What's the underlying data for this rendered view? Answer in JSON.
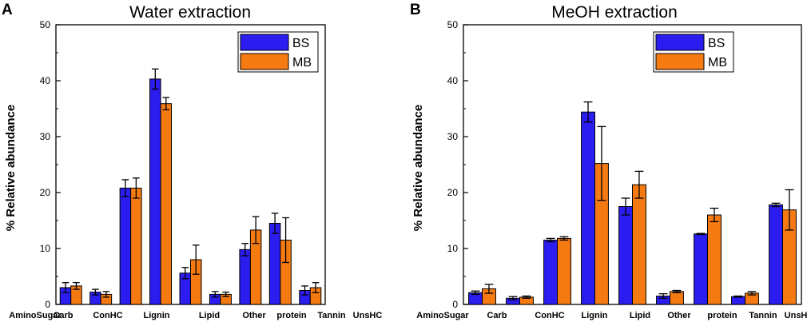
{
  "chart_data": [
    {
      "type": "bar",
      "panel": "A",
      "title": "Water extraction",
      "ylabel": "% Relative abundance",
      "xlabel": "",
      "ylim": [
        0,
        50
      ],
      "yticks": [
        0,
        10,
        20,
        30,
        40,
        50
      ],
      "categories": [
        "AminoSugar",
        "Carb",
        "ConHC",
        "Lignin",
        "Lipid",
        "Other",
        "protein",
        "Tannin",
        "UnsHC"
      ],
      "series": [
        {
          "name": "BS",
          "color": "#2b1df0",
          "values": [
            3.0,
            2.2,
            20.8,
            40.3,
            5.6,
            1.8,
            9.8,
            14.5,
            2.5
          ],
          "errors": [
            0.9,
            0.5,
            1.5,
            1.8,
            1.0,
            0.5,
            1.1,
            1.8,
            0.8
          ]
        },
        {
          "name": "MB",
          "color": "#f57a12",
          "values": [
            3.3,
            1.8,
            20.8,
            35.9,
            8.0,
            1.8,
            13.3,
            11.5,
            3.0
          ],
          "errors": [
            0.6,
            0.5,
            1.8,
            1.1,
            2.6,
            0.4,
            2.4,
            4.0,
            0.9
          ]
        }
      ]
    },
    {
      "type": "bar",
      "panel": "B",
      "title": "MeOH extraction",
      "ylabel": "% Relative abundance",
      "xlabel": "",
      "ylim": [
        0,
        50
      ],
      "yticks": [
        0,
        10,
        20,
        30,
        40,
        50
      ],
      "categories": [
        "AminoSugar",
        "Carb",
        "ConHC",
        "Lignin",
        "Lipid",
        "Other",
        "protein",
        "Tannin",
        "UnsHC"
      ],
      "series": [
        {
          "name": "BS",
          "color": "#2b1df0",
          "values": [
            2.1,
            1.1,
            11.5,
            34.4,
            17.5,
            1.5,
            12.6,
            1.4,
            17.8
          ],
          "errors": [
            0.3,
            0.3,
            0.3,
            1.8,
            1.5,
            0.4,
            0.1,
            0.1,
            0.3
          ]
        },
        {
          "name": "MB",
          "color": "#f57a12",
          "values": [
            2.8,
            1.3,
            11.8,
            25.2,
            21.4,
            2.3,
            16.0,
            2.0,
            16.9
          ],
          "errors": [
            0.8,
            0.2,
            0.3,
            6.6,
            2.4,
            0.2,
            1.2,
            0.3,
            3.6
          ]
        }
      ]
    }
  ]
}
